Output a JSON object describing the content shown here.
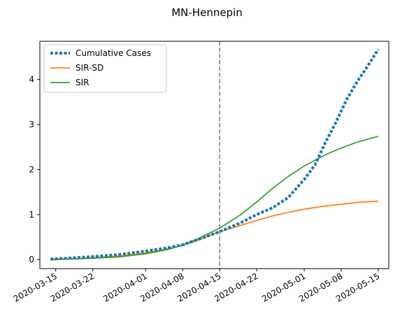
{
  "chart_data": {
    "type": "line",
    "title": "MN-Hennepin",
    "xlabel": "",
    "ylabel": "",
    "x_type": "date",
    "xlim": [
      "2020-03-12",
      "2020-05-17"
    ],
    "ylim": [
      -0.2,
      4.85
    ],
    "x_ticks": [
      "2020-03-15",
      "2020-03-22",
      "2020-04-01",
      "2020-04-08",
      "2020-04-15",
      "2020-04-22",
      "2020-05-01",
      "2020-05-08",
      "2020-05-15"
    ],
    "y_ticks": [
      0,
      1,
      2,
      3,
      4
    ],
    "grid": false,
    "legend_position": "top-left",
    "vline": {
      "x": "2020-04-15",
      "style": "dashed",
      "color": "#7f7f7f"
    },
    "series": [
      {
        "name": "Cumulative Cases",
        "style": "dotted",
        "color": "#1f77b4",
        "points": [
          [
            "2020-03-14",
            0.01
          ],
          [
            "2020-03-20",
            0.05
          ],
          [
            "2020-03-27",
            0.11
          ],
          [
            "2020-04-01",
            0.19
          ],
          [
            "2020-04-05",
            0.26
          ],
          [
            "2020-04-08",
            0.33
          ],
          [
            "2020-04-11",
            0.45
          ],
          [
            "2020-04-15",
            0.62
          ],
          [
            "2020-04-19",
            0.82
          ],
          [
            "2020-04-22",
            1.0
          ],
          [
            "2020-04-25",
            1.15
          ],
          [
            "2020-04-28",
            1.38
          ],
          [
            "2020-05-01",
            1.78
          ],
          [
            "2020-05-03",
            2.1
          ],
          [
            "2020-05-05",
            2.6
          ],
          [
            "2020-05-07",
            3.05
          ],
          [
            "2020-05-09",
            3.55
          ],
          [
            "2020-05-11",
            3.95
          ],
          [
            "2020-05-13",
            4.3
          ],
          [
            "2020-05-15",
            4.67
          ]
        ]
      },
      {
        "name": "SIR-SD",
        "style": "solid",
        "color": "#ff7f0e",
        "points": [
          [
            "2020-03-14",
            0.01
          ],
          [
            "2020-03-20",
            0.03
          ],
          [
            "2020-03-27",
            0.08
          ],
          [
            "2020-04-01",
            0.15
          ],
          [
            "2020-04-05",
            0.24
          ],
          [
            "2020-04-08",
            0.31
          ],
          [
            "2020-04-11",
            0.44
          ],
          [
            "2020-04-15",
            0.62
          ],
          [
            "2020-04-19",
            0.76
          ],
          [
            "2020-04-22",
            0.87
          ],
          [
            "2020-04-25",
            0.97
          ],
          [
            "2020-04-28",
            1.05
          ],
          [
            "2020-05-01",
            1.12
          ],
          [
            "2020-05-05",
            1.19
          ],
          [
            "2020-05-08",
            1.23
          ],
          [
            "2020-05-11",
            1.27
          ],
          [
            "2020-05-15",
            1.3
          ]
        ]
      },
      {
        "name": "SIR",
        "style": "solid",
        "color": "#2ca02c",
        "points": [
          [
            "2020-03-14",
            0.0
          ],
          [
            "2020-03-20",
            0.02
          ],
          [
            "2020-03-27",
            0.06
          ],
          [
            "2020-04-01",
            0.13
          ],
          [
            "2020-04-05",
            0.22
          ],
          [
            "2020-04-08",
            0.32
          ],
          [
            "2020-04-11",
            0.47
          ],
          [
            "2020-04-15",
            0.7
          ],
          [
            "2020-04-19",
            1.0
          ],
          [
            "2020-04-22",
            1.28
          ],
          [
            "2020-04-25",
            1.58
          ],
          [
            "2020-04-28",
            1.85
          ],
          [
            "2020-05-01",
            2.08
          ],
          [
            "2020-05-05",
            2.33
          ],
          [
            "2020-05-08",
            2.48
          ],
          [
            "2020-05-11",
            2.61
          ],
          [
            "2020-05-15",
            2.74
          ]
        ]
      }
    ]
  }
}
